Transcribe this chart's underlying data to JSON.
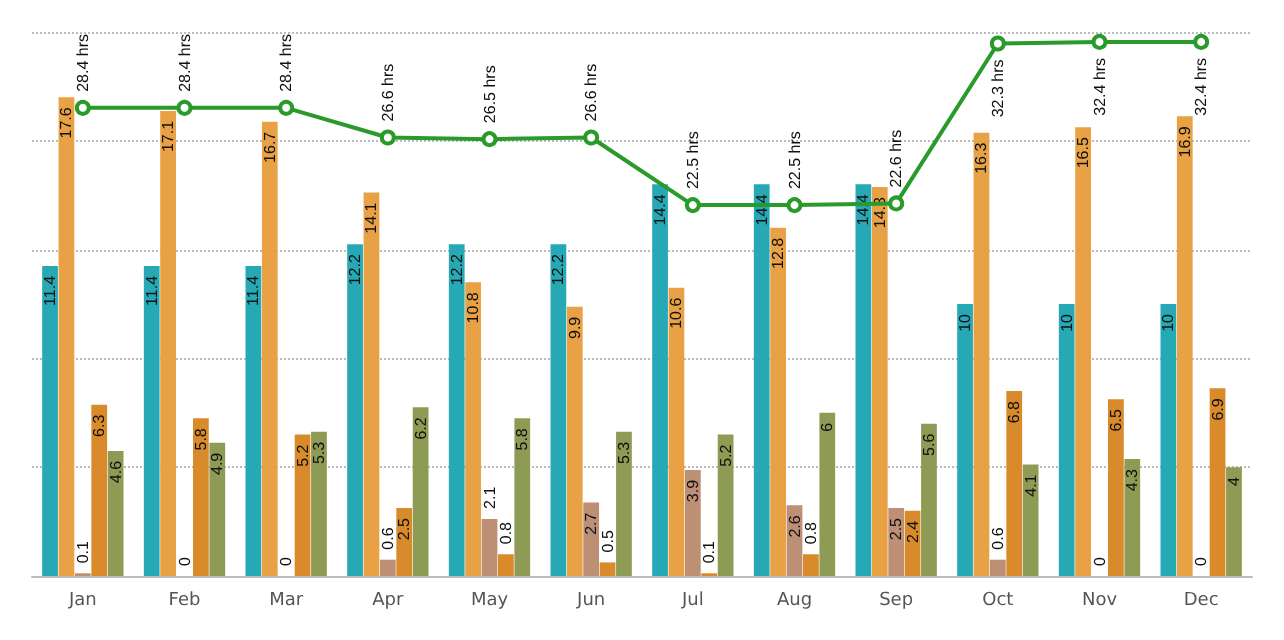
{
  "chart_data": {
    "type": "bar",
    "categories": [
      "Jan",
      "Feb",
      "Mar",
      "Apr",
      "May",
      "Jun",
      "Jul",
      "Aug",
      "Sep",
      "Oct",
      "Nov",
      "Dec"
    ],
    "series": [
      {
        "color": "#26a9b5",
        "values": [
          11.4,
          11.4,
          11.4,
          12.2,
          12.2,
          12.2,
          14.4,
          14.4,
          14.4,
          10,
          10,
          10
        ]
      },
      {
        "color": "#e8a145",
        "values": [
          17.6,
          17.1,
          16.7,
          14.1,
          10.8,
          9.9,
          10.6,
          12.8,
          14.3,
          16.3,
          16.5,
          16.9
        ]
      },
      {
        "color": "#bd8f75",
        "values": [
          0.1,
          0,
          0,
          0.6,
          2.1,
          2.7,
          3.9,
          2.6,
          2.5,
          0.6,
          0,
          0
        ]
      },
      {
        "color": "#d98a2a",
        "values": [
          6.3,
          5.8,
          5.2,
          2.5,
          0.8,
          0.5,
          0.1,
          0.8,
          2.4,
          6.8,
          6.5,
          6.9
        ]
      },
      {
        "color": "#8e9b55",
        "values": [
          4.6,
          4.9,
          5.3,
          6.2,
          5.8,
          5.3,
          5.2,
          6,
          5.6,
          4.1,
          4.3,
          4
        ]
      },
      {
        "type": "line",
        "axis": "y2",
        "color": "#2a9a2a",
        "marker": "circle",
        "values": [
          28.4,
          28.4,
          28.4,
          26.6,
          26.5,
          26.6,
          22.5,
          22.5,
          22.6,
          32.3,
          32.4,
          32.4
        ],
        "value_labels": [
          "28.4 hrs",
          "28.4 hrs",
          "28.4 hrs",
          "26.6 hrs",
          "26.5 hrs",
          "26.6 hrs",
          "22.5 hrs",
          "22.5 hrs",
          "22.6 hrs",
          "32.3 hrs",
          "32.4 hrs",
          "32.4 hrs"
        ]
      }
    ],
    "ylim": [
      0,
      20
    ],
    "yticks": [
      {
        "value": 0,
        "label": null
      },
      {
        "value": 4,
        "label": null
      },
      {
        "value": 8,
        "label": null
      },
      {
        "value": 12,
        "label": null
      },
      {
        "value": 16,
        "label": null
      },
      {
        "value": 20,
        "label": null
      }
    ],
    "y2lim": [
      0,
      33
    ],
    "tick_labels": "x",
    "grid": "y",
    "data_labels": true
  }
}
